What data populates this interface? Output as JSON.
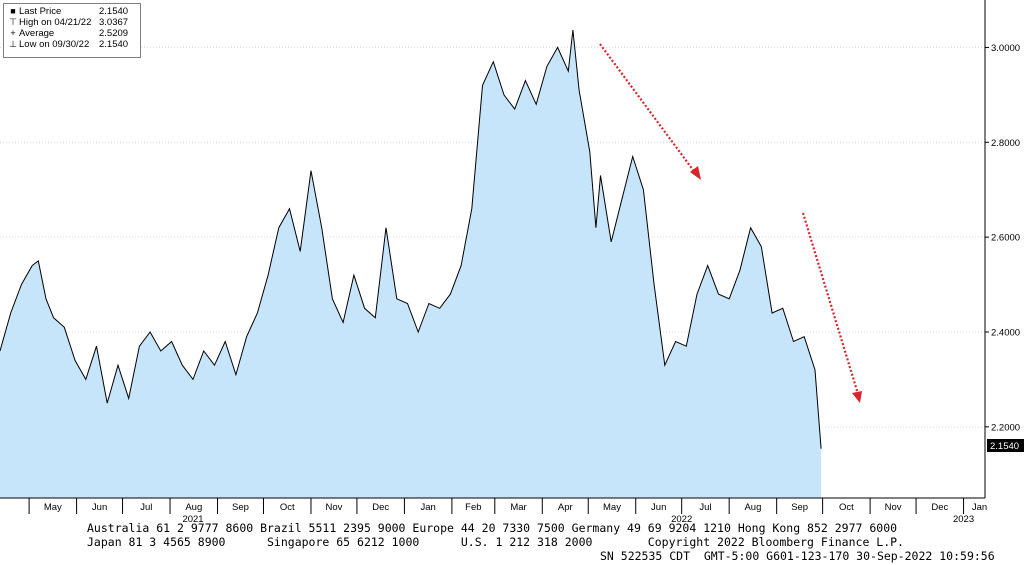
{
  "legend": {
    "items": [
      {
        "symbol": "■",
        "label": "Last Price",
        "value": "2.1540"
      },
      {
        "symbol": "⊤",
        "label": "High on 04/21/22",
        "value": "3.0367"
      },
      {
        "symbol": "+",
        "label": "Average",
        "value": "2.5209"
      },
      {
        "symbol": "⊥",
        "label": "Low on 09/30/22",
        "value": "2.1540"
      }
    ]
  },
  "last_price_tag": "2.1540",
  "footer": {
    "line1": "Australia 61 2 9777 8600 Brazil 5511 2395 9000 Europe 44 20 7330 7500 Germany 49 69 9204 1210 Hong Kong 852 2977 6000",
    "line2": "Japan 81 3 4565 8900      Singapore 65 6212 1000      U.S. 1 212 318 2000        Copyright 2022 Bloomberg Finance L.P.",
    "line3": "SN 522535 CDT  GMT-5:00 G601-123-170 30-Sep-2022 10:59:56"
  },
  "colors": {
    "area_fill": "#c6e5fb",
    "line": "#000000",
    "arrows": "#d9242b",
    "grid": "#dcdcdc"
  },
  "chart_data": {
    "type": "area",
    "title": "",
    "xlabel": "",
    "ylabel": "",
    "ylim": [
      2.05,
      3.1
    ],
    "y_ticks": [
      "2.2000",
      "2.4000",
      "2.6000",
      "2.8000",
      "3.0000"
    ],
    "y_tick_values": [
      2.2,
      2.4,
      2.6,
      2.8,
      3.0
    ],
    "x_tick_labels": [
      "May",
      "Jun",
      "Jul",
      "Aug",
      "Sep",
      "Oct",
      "Nov",
      "Dec",
      "Jan",
      "Feb",
      "Mar",
      "Apr",
      "May",
      "Jun",
      "Jul",
      "Aug",
      "Sep",
      "Oct",
      "Nov",
      "Dec",
      "Jan"
    ],
    "x_tick_dates": [
      "2021-05-01",
      "2021-06-01",
      "2021-07-01",
      "2021-08-01",
      "2021-09-01",
      "2021-10-01",
      "2021-11-01",
      "2021-12-01",
      "2022-01-01",
      "2022-02-01",
      "2022-03-01",
      "2022-04-01",
      "2022-05-01",
      "2022-06-01",
      "2022-07-01",
      "2022-08-01",
      "2022-09-01",
      "2022-10-01",
      "2022-11-01",
      "2022-12-01",
      "2023-01-01"
    ],
    "year_labels": [
      {
        "label": "2021",
        "date": "2021-08-16"
      },
      {
        "label": "2022",
        "date": "2022-07-01"
      },
      {
        "label": "2023",
        "date": "2023-01-01"
      }
    ],
    "xlim": [
      "2021-04-12",
      "2023-01-15"
    ],
    "grid": true,
    "legend_position": "top-left",
    "series": [
      {
        "name": "Last Price",
        "x": [
          "2021-04-12",
          "2021-04-19",
          "2021-04-26",
          "2021-05-03",
          "2021-05-07",
          "2021-05-12",
          "2021-05-17",
          "2021-05-24",
          "2021-05-31",
          "2021-06-07",
          "2021-06-14",
          "2021-06-21",
          "2021-06-28",
          "2021-07-05",
          "2021-07-12",
          "2021-07-19",
          "2021-07-26",
          "2021-08-02",
          "2021-08-09",
          "2021-08-16",
          "2021-08-23",
          "2021-08-30",
          "2021-09-06",
          "2021-09-13",
          "2021-09-20",
          "2021-09-27",
          "2021-10-04",
          "2021-10-11",
          "2021-10-18",
          "2021-10-25",
          "2021-11-01",
          "2021-11-08",
          "2021-11-15",
          "2021-11-22",
          "2021-11-29",
          "2021-12-06",
          "2021-12-13",
          "2021-12-20",
          "2021-12-27",
          "2022-01-03",
          "2022-01-10",
          "2022-01-17",
          "2022-01-24",
          "2022-01-31",
          "2022-02-07",
          "2022-02-14",
          "2022-02-21",
          "2022-02-28",
          "2022-03-07",
          "2022-03-14",
          "2022-03-21",
          "2022-03-28",
          "2022-04-04",
          "2022-04-11",
          "2022-04-18",
          "2022-04-21",
          "2022-04-25",
          "2022-05-02",
          "2022-05-06",
          "2022-05-09",
          "2022-05-16",
          "2022-05-23",
          "2022-05-30",
          "2022-06-06",
          "2022-06-13",
          "2022-06-20",
          "2022-06-27",
          "2022-07-04",
          "2022-07-11",
          "2022-07-18",
          "2022-07-25",
          "2022-08-01",
          "2022-08-08",
          "2022-08-15",
          "2022-08-22",
          "2022-08-29",
          "2022-09-05",
          "2022-09-12",
          "2022-09-19",
          "2022-09-26",
          "2022-09-30"
        ],
        "y": [
          2.36,
          2.44,
          2.5,
          2.54,
          2.55,
          2.47,
          2.43,
          2.41,
          2.34,
          2.3,
          2.37,
          2.25,
          2.33,
          2.26,
          2.37,
          2.4,
          2.36,
          2.38,
          2.33,
          2.3,
          2.36,
          2.33,
          2.38,
          2.31,
          2.39,
          2.44,
          2.52,
          2.62,
          2.66,
          2.57,
          2.74,
          2.62,
          2.47,
          2.42,
          2.52,
          2.45,
          2.43,
          2.62,
          2.47,
          2.46,
          2.4,
          2.46,
          2.45,
          2.48,
          2.54,
          2.66,
          2.92,
          2.97,
          2.9,
          2.87,
          2.93,
          2.88,
          2.96,
          3.0,
          2.95,
          3.0367,
          2.91,
          2.78,
          2.62,
          2.73,
          2.59,
          2.68,
          2.77,
          2.7,
          2.5,
          2.33,
          2.38,
          2.37,
          2.48,
          2.54,
          2.48,
          2.47,
          2.53,
          2.62,
          2.58,
          2.44,
          2.45,
          2.38,
          2.39,
          2.32,
          2.154
        ]
      }
    ]
  }
}
